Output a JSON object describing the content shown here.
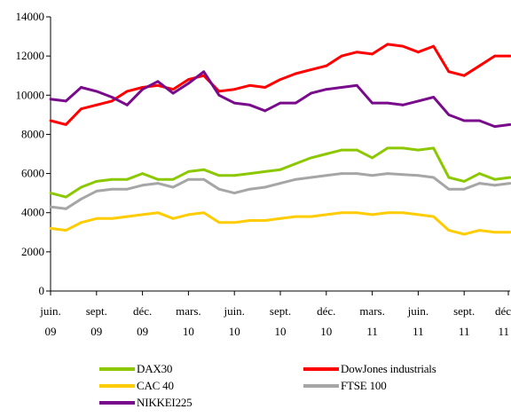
{
  "chart_data": {
    "type": "line",
    "ylim": [
      0,
      14000
    ],
    "y_ticks": [
      "0",
      "2000",
      "4000",
      "6000",
      "8000",
      "10000",
      "12000",
      "14000"
    ],
    "x_tick_labels": [
      {
        "month": "juin.",
        "year": "09"
      },
      {
        "month": "sept.",
        "year": "09"
      },
      {
        "month": "déc.",
        "year": "09"
      },
      {
        "month": "mars.",
        "year": "10"
      },
      {
        "month": "juin.",
        "year": "10"
      },
      {
        "month": "sept.",
        "year": "10"
      },
      {
        "month": "déc.",
        "year": "10"
      },
      {
        "month": "mars.",
        "year": "11"
      },
      {
        "month": "juin.",
        "year": "11"
      },
      {
        "month": "sept.",
        "year": "11"
      },
      {
        "month": "déc",
        "year": "11"
      }
    ],
    "x": [
      "2009-06",
      "2009-07",
      "2009-08",
      "2009-09",
      "2009-10",
      "2009-11",
      "2009-12",
      "2010-01",
      "2010-02",
      "2010-03",
      "2010-04",
      "2010-05",
      "2010-06",
      "2010-07",
      "2010-08",
      "2010-09",
      "2010-10",
      "2010-11",
      "2010-12",
      "2011-01",
      "2011-02",
      "2011-03",
      "2011-04",
      "2011-05",
      "2011-06",
      "2011-07",
      "2011-08",
      "2011-09",
      "2011-10",
      "2011-11",
      "2011-12"
    ],
    "series": [
      {
        "name": "DowJones industrials",
        "color": "#ff0000",
        "values": [
          8700,
          8500,
          9300,
          9500,
          9700,
          10200,
          10400,
          10500,
          10300,
          10800,
          11000,
          10200,
          10300,
          10500,
          10400,
          10800,
          11100,
          11300,
          11500,
          12000,
          12200,
          12100,
          12600,
          12500,
          12200,
          12500,
          11200,
          11000,
          11500,
          12000,
          12000
        ]
      },
      {
        "name": "NIKKEI225",
        "color": "#7a0a8c",
        "values": [
          9800,
          9700,
          10400,
          10200,
          9900,
          9500,
          10300,
          10700,
          10100,
          10600,
          11200,
          10000,
          9600,
          9500,
          9200,
          9600,
          9600,
          10100,
          10300,
          10400,
          10500,
          9600,
          9600,
          9500,
          9700,
          9900,
          9000,
          8700,
          8700,
          8400,
          8500
        ]
      },
      {
        "name": "DAX30",
        "color": "#8cc800",
        "values": [
          5000,
          4800,
          5300,
          5600,
          5700,
          5700,
          6000,
          5700,
          5700,
          6100,
          6200,
          5900,
          5900,
          6000,
          6100,
          6200,
          6500,
          6800,
          7000,
          7200,
          7200,
          6800,
          7300,
          7300,
          7200,
          7300,
          5800,
          5600,
          6000,
          5700,
          5800
        ]
      },
      {
        "name": "FTSE 100",
        "color": "#a6a6a6",
        "values": [
          4300,
          4200,
          4700,
          5100,
          5200,
          5200,
          5400,
          5500,
          5300,
          5700,
          5700,
          5200,
          5000,
          5200,
          5300,
          5500,
          5700,
          5800,
          5900,
          6000,
          6000,
          5900,
          6000,
          5950,
          5900,
          5800,
          5200,
          5200,
          5500,
          5400,
          5500
        ]
      },
      {
        "name": "CAC 40",
        "color": "#ffcc00",
        "values": [
          3200,
          3100,
          3500,
          3700,
          3700,
          3800,
          3900,
          4000,
          3700,
          3900,
          4000,
          3500,
          3500,
          3600,
          3600,
          3700,
          3800,
          3800,
          3900,
          4000,
          4000,
          3900,
          4000,
          4000,
          3900,
          3800,
          3100,
          2900,
          3100,
          3000,
          3000
        ]
      }
    ]
  }
}
